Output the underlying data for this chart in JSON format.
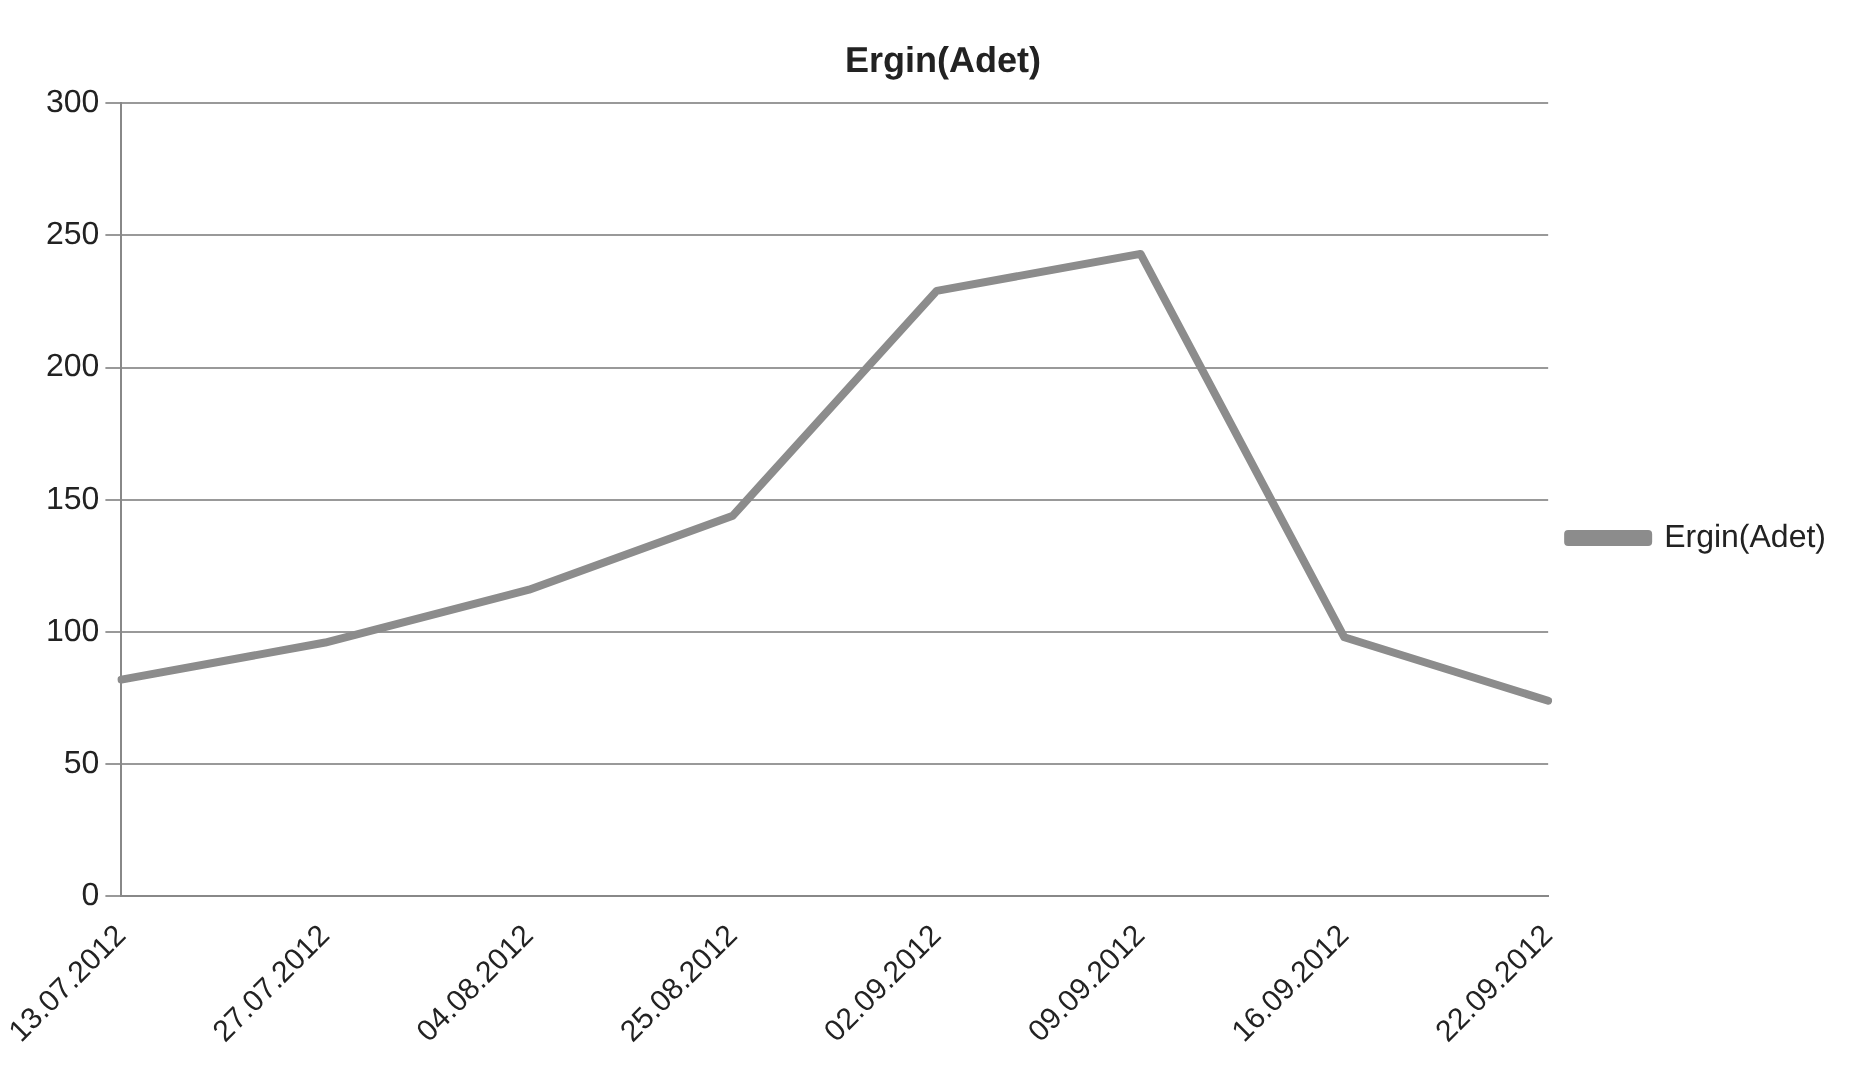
{
  "chart_data": {
    "type": "line",
    "title": "Ergin(Adet)",
    "categories": [
      "13.07.2012",
      "27.07.2012",
      "04.08.2012",
      "25.08.2012",
      "02.09.2012",
      "09.09.2012",
      "16.09.2012",
      "22.09.2012"
    ],
    "series": [
      {
        "name": "Ergin(Adet)",
        "color": "#8c8c8c",
        "values": [
          82,
          96,
          116,
          144,
          229,
          243,
          98,
          74
        ]
      }
    ],
    "ylim": [
      0,
      300
    ],
    "yticks": [
      0,
      50,
      100,
      150,
      200,
      250,
      300
    ],
    "grid": "y",
    "legend": "right",
    "marker": "none",
    "line_style": "solid"
  }
}
